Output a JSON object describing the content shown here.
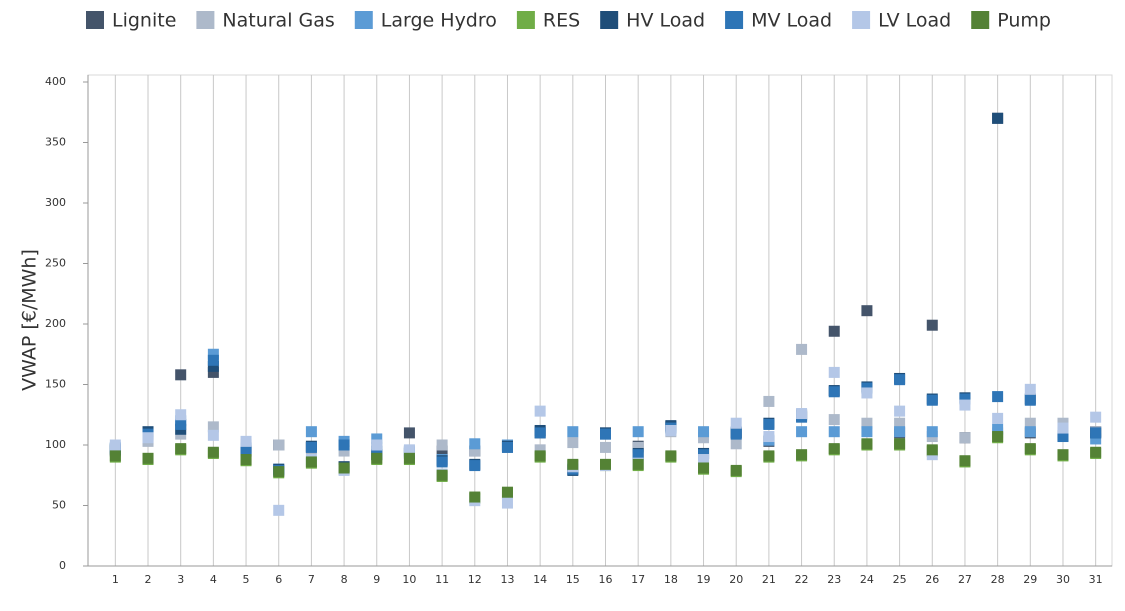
{
  "chart_data": {
    "type": "scatter",
    "ylabel": "VWAP [€/MWh]",
    "categories": [
      "1",
      "2",
      "3",
      "4",
      "5",
      "6",
      "7",
      "8",
      "9",
      "10",
      "11",
      "12",
      "13",
      "14",
      "15",
      "16",
      "17",
      "18",
      "19",
      "20",
      "21",
      "22",
      "23",
      "24",
      "25",
      "26",
      "27",
      "28",
      "29",
      "30",
      "31"
    ],
    "ylim": [
      0,
      400
    ],
    "yticks": [
      0,
      50,
      100,
      150,
      200,
      250,
      300,
      350,
      400
    ],
    "grid": true,
    "legend": "top",
    "series": [
      {
        "name": "Lignite",
        "color": "#44546a",
        "values": [
          95,
          105,
          158,
          160,
          95,
          100,
          98,
          82,
          92,
          110,
          95,
          95,
          100,
          110,
          80,
          110,
          99,
          115,
          93,
          110,
          103,
          125,
          194,
          211,
          110,
          199,
          106,
          370,
          110,
          108,
          111
        ]
      },
      {
        "name": "Natural Gas",
        "color": "#adb9ca",
        "values": [
          97,
          103,
          109,
          115,
          100,
          100,
          97,
          95,
          98,
          95,
          100,
          95,
          98,
          96,
          102,
          98,
          98,
          111,
          106,
          101,
          136,
          179,
          121,
          118,
          118,
          107,
          106,
          110,
          118,
          118,
          111
        ]
      },
      {
        "name": "Large Hydro",
        "color": "#5b9bd5",
        "values": [
          98,
          108,
          120,
          175,
          98,
          80,
          111,
          103,
          105,
          95,
          88,
          101,
          100,
          111,
          111,
          109,
          111,
          115,
          111,
          111,
          104,
          111,
          111,
          111,
          111,
          111,
          138,
          113,
          111,
          110,
          105
        ]
      },
      {
        "name": "RES",
        "color": "#70ad47",
        "values": [
          90,
          88,
          96,
          93,
          87,
          77,
          85,
          80,
          88,
          88,
          74,
          56,
          60,
          90,
          83,
          83,
          83,
          90,
          80,
          78,
          90,
          91,
          96,
          100,
          100,
          95,
          86,
          106,
          96,
          91,
          93
        ]
      },
      {
        "name": "HV Load",
        "color": "#1f4e79",
        "values": [
          96,
          111,
          113,
          165,
          95,
          80,
          99,
          82,
          92,
          93,
          87,
          84,
          99,
          112,
          79,
          110,
          93,
          116,
          93,
          110,
          118,
          124,
          145,
          148,
          155,
          138,
          139,
          370,
          138,
          108,
          110
        ]
      },
      {
        "name": "MV Load",
        "color": "#2e75b6",
        "values": [
          97,
          109,
          117,
          170,
          97,
          79,
          98,
          100,
          95,
          94,
          86,
          83,
          98,
          110,
          80,
          109,
          92,
          114,
          92,
          109,
          117,
          123,
          144,
          147,
          154,
          137,
          138,
          140,
          137,
          107,
          110
        ]
      },
      {
        "name": "LV Load",
        "color": "#b4c7e7",
        "values": [
          100,
          106,
          125,
          108,
          103,
          46,
          88,
          79,
          100,
          96,
          76,
          54,
          52,
          128,
          82,
          83,
          85,
          112,
          88,
          118,
          107,
          126,
          160,
          143,
          128,
          92,
          133,
          122,
          146,
          114,
          123
        ]
      },
      {
        "name": "Pump",
        "color": "#548235",
        "values": [
          91,
          89,
          97,
          94,
          88,
          78,
          86,
          81,
          89,
          89,
          75,
          57,
          61,
          91,
          84,
          84,
          84,
          91,
          81,
          79,
          91,
          92,
          97,
          101,
          101,
          96,
          87,
          107,
          97,
          92,
          94
        ]
      }
    ]
  }
}
